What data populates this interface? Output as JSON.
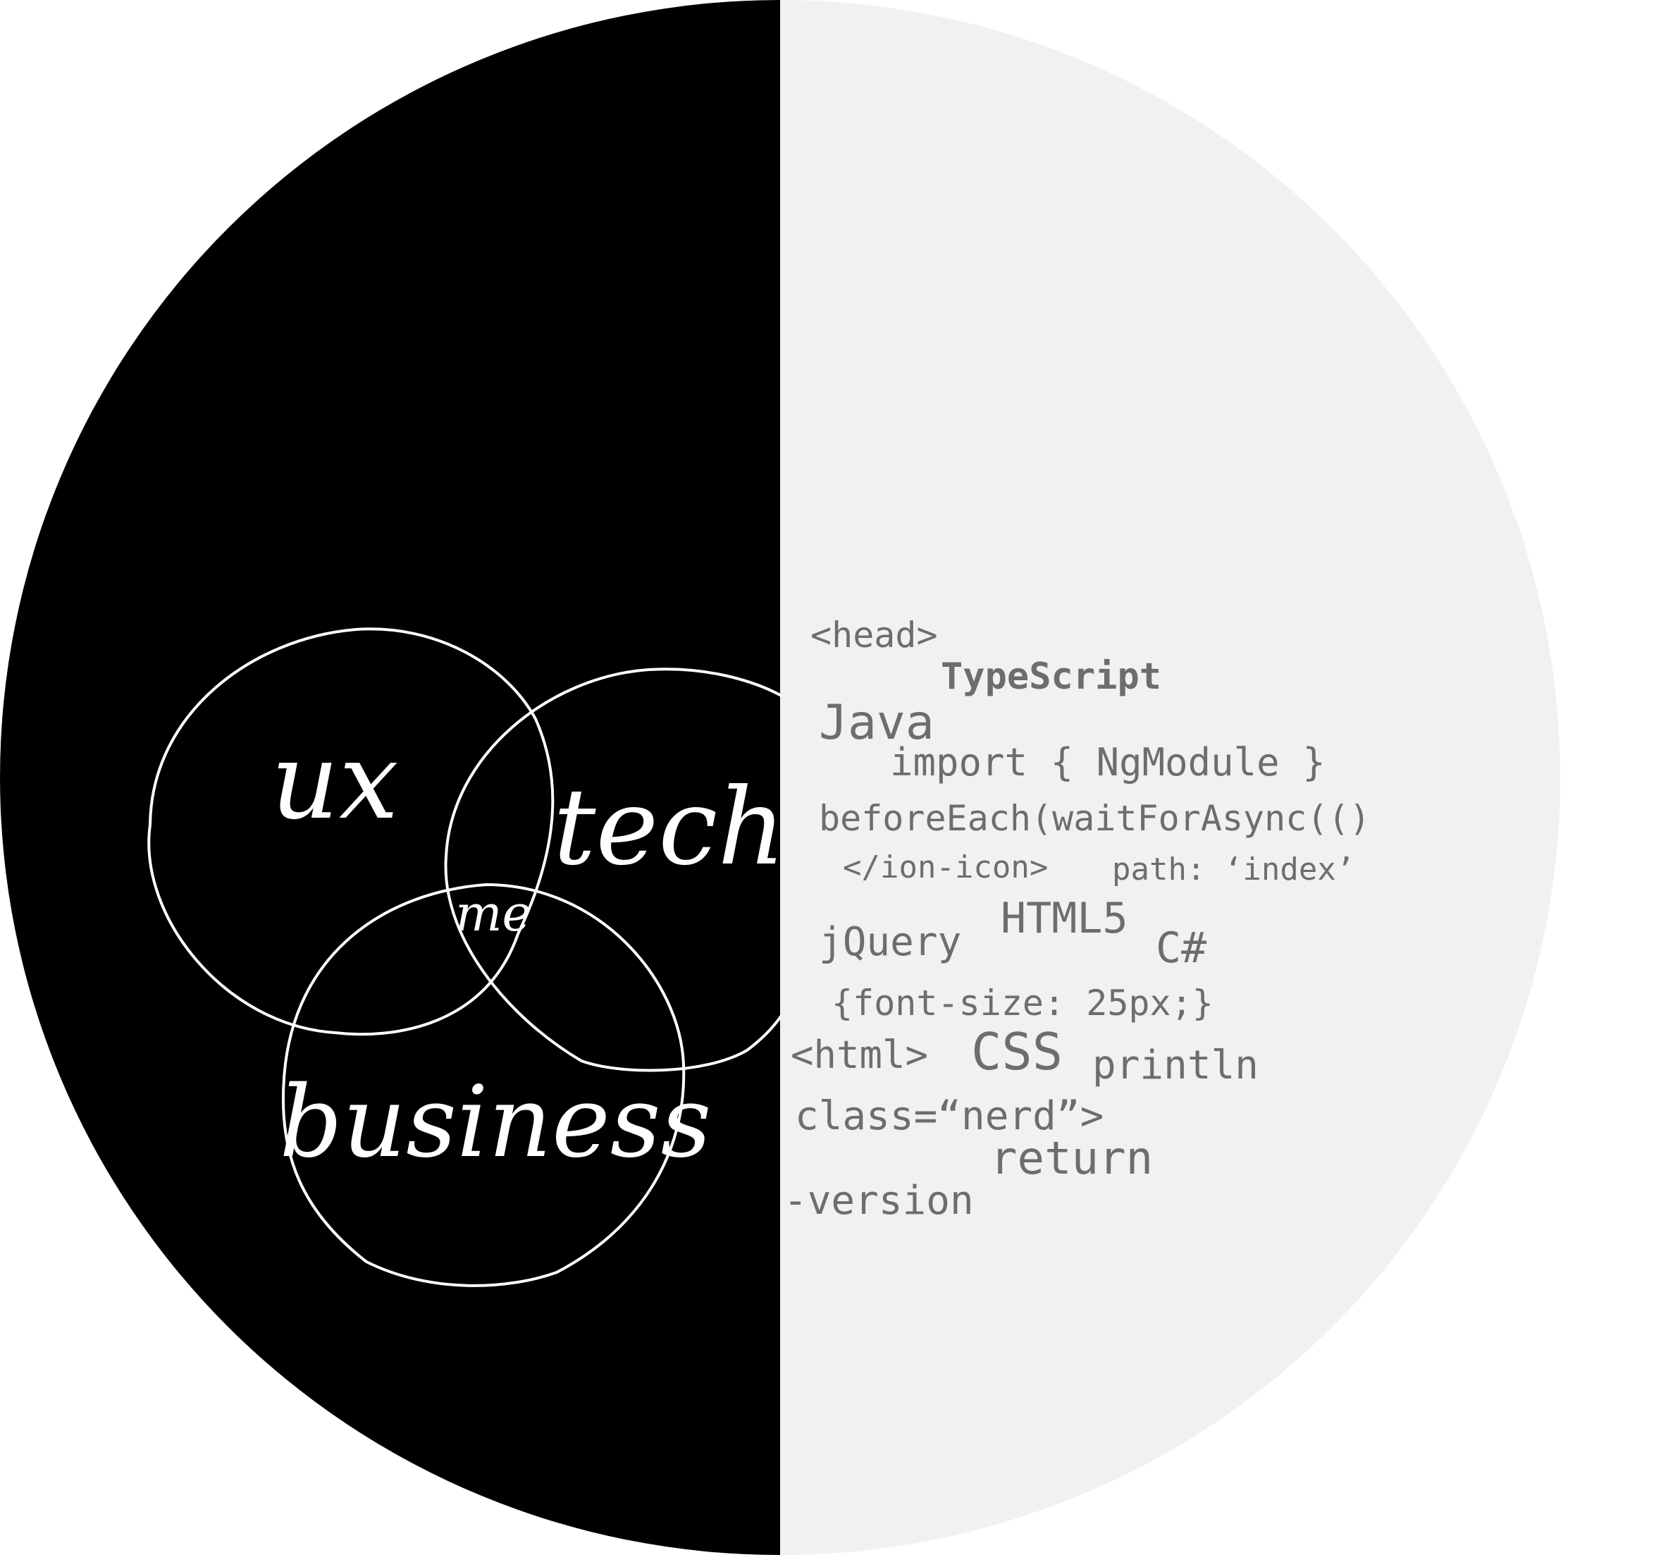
{
  "colors": {
    "left_half": "#000000",
    "right_half": "#f1f1f1",
    "venn_stroke": "#ffffff",
    "venn_text": "#ffffff",
    "code_text": "#6f6c6c"
  },
  "venn": {
    "circles": [
      {
        "label": "ux"
      },
      {
        "label": "tech"
      },
      {
        "label": "business"
      }
    ],
    "center_label": "me"
  },
  "code_words": [
    "<head>",
    "TypeScript",
    "Java",
    "import { NgModule }",
    "beforeEach(waitForAsync(()",
    "</ion-icon>",
    "path: ‘index’",
    "HTML5",
    "jQuery",
    "C#",
    "{font-size: 25px;}",
    "<html>",
    "CSS",
    "println",
    "class=“nerd”>",
    "return",
    "-version"
  ]
}
